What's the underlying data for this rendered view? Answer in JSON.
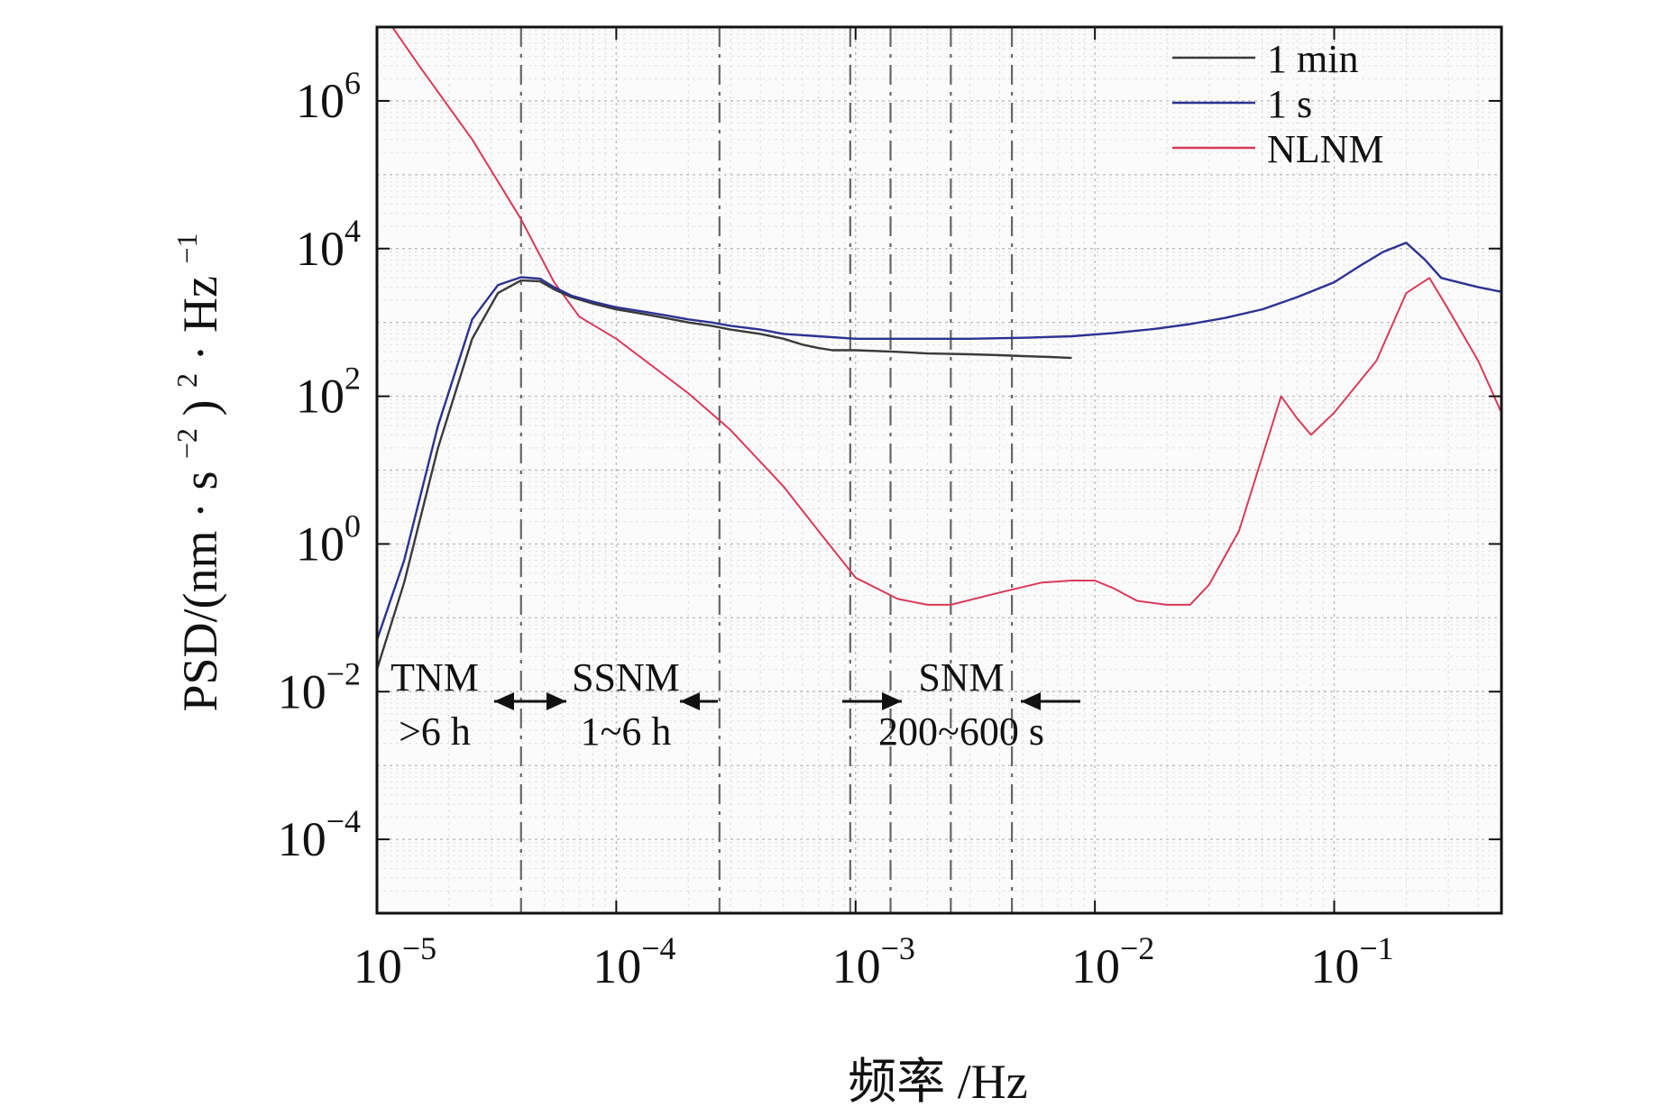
{
  "chart_data": {
    "type": "line",
    "x_scale": "log",
    "y_scale": "log",
    "xlim": [
      1e-05,
      0.5
    ],
    "ylim": [
      1e-05,
      10000000.0
    ],
    "xlabel": "频率 /Hz",
    "ylabel_parts": {
      "a": "PSD/(nm",
      "dot1": "·",
      "b": "s",
      "exp1": "−2",
      "c": ")",
      "exp2": "2",
      "dot2": "·",
      "d": "Hz",
      "exp3": "−1"
    },
    "x_ticks": [
      {
        "value": 1e-05,
        "base": "10",
        "exp": "−5"
      },
      {
        "value": 0.0001,
        "base": "10",
        "exp": "−4"
      },
      {
        "value": 0.001,
        "base": "10",
        "exp": "−3"
      },
      {
        "value": 0.01,
        "base": "10",
        "exp": "−2"
      },
      {
        "value": 0.1,
        "base": "10",
        "exp": "−1"
      }
    ],
    "y_ticks": [
      {
        "value": 0.0001,
        "base": "10",
        "exp": "−4"
      },
      {
        "value": 0.01,
        "base": "10",
        "exp": "−2"
      },
      {
        "value": 1,
        "base": "10",
        "exp": "0"
      },
      {
        "value": 100,
        "base": "10",
        "exp": "2"
      },
      {
        "value": 10000,
        "base": "10",
        "exp": "4"
      },
      {
        "value": 1000000,
        "base": "10",
        "exp": "6"
      }
    ],
    "grid": true,
    "legend_position": "top-right",
    "series": [
      {
        "name": "1 min",
        "color": "#3a3a3a",
        "x": [
          1e-05,
          1.3e-05,
          1.8e-05,
          2.5e-05,
          3.2e-05,
          4e-05,
          4.8e-05,
          5.5e-05,
          6.5e-05,
          8e-05,
          0.0001,
          0.00013,
          0.00016,
          0.0002,
          0.00025,
          0.0003,
          0.0004,
          0.0005,
          0.0006,
          0.0007,
          0.0008,
          0.001,
          0.0015,
          0.002,
          0.003,
          0.004,
          0.005,
          0.0065,
          0.008
        ],
        "y": [
          0.02,
          0.3,
          20,
          600,
          2500,
          3700,
          3600,
          2800,
          2200,
          1800,
          1500,
          1300,
          1150,
          1000,
          900,
          800,
          700,
          600,
          500,
          450,
          420,
          420,
          400,
          380,
          370,
          360,
          350,
          340,
          330
        ]
      },
      {
        "name": "1 s",
        "color": "#2e3192",
        "x": [
          1e-05,
          1.3e-05,
          1.8e-05,
          2.5e-05,
          3.2e-05,
          4e-05,
          4.8e-05,
          5.5e-05,
          6.5e-05,
          8e-05,
          0.0001,
          0.00013,
          0.00016,
          0.0002,
          0.00025,
          0.0003,
          0.0004,
          0.0005,
          0.0007,
          0.001,
          0.0015,
          0.002,
          0.003,
          0.005,
          0.008,
          0.012,
          0.018,
          0.025,
          0.035,
          0.05,
          0.07,
          0.1,
          0.13,
          0.16,
          0.2,
          0.24,
          0.28,
          0.33,
          0.4,
          0.5
        ],
        "y": [
          0.05,
          0.6,
          40,
          1100,
          3200,
          4100,
          3900,
          3000,
          2300,
          1900,
          1600,
          1400,
          1250,
          1100,
          1000,
          900,
          800,
          700,
          650,
          600,
          600,
          600,
          600,
          620,
          650,
          720,
          820,
          950,
          1150,
          1500,
          2200,
          3500,
          6000,
          9000,
          12000,
          7000,
          4000,
          3500,
          3000,
          2600
        ]
      },
      {
        "name": "NLNM",
        "color": "#d83a5a",
        "x": [
          1e-05,
          1.5e-05,
          2.5e-05,
          4e-05,
          5.5e-05,
          7e-05,
          0.0001,
          0.0002,
          0.0003,
          0.0005,
          0.0007,
          0.001,
          0.0015,
          0.002,
          0.0025,
          0.004,
          0.006,
          0.008,
          0.01,
          0.012,
          0.015,
          0.02,
          0.025,
          0.03,
          0.04,
          0.05,
          0.06,
          0.07,
          0.08,
          0.1,
          0.15,
          0.2,
          0.25,
          0.3,
          0.4,
          0.5
        ],
        "y": [
          20000000,
          3000000,
          300000,
          25000,
          3500,
          1200,
          600,
          110,
          35,
          6,
          1.5,
          0.35,
          0.18,
          0.15,
          0.15,
          0.22,
          0.3,
          0.32,
          0.32,
          0.25,
          0.17,
          0.15,
          0.15,
          0.28,
          1.5,
          15,
          100,
          50,
          30,
          60,
          300,
          2500,
          4000,
          1500,
          300,
          60
        ]
      }
    ],
    "vlines": [
      4e-05,
      0.00027,
      0.00095,
      0.0025,
      0.0014,
      0.0045
    ],
    "annotations": [
      {
        "name": "tnm",
        "line1": "TNM",
        "line2": ">6 h",
        "x": 2e-05
      },
      {
        "name": "ssnm",
        "line1": "SSNM",
        "line2": "1~6 h",
        "x": 0.0001
      },
      {
        "name": "snm",
        "line1": "SNM",
        "line2": "200~600 s",
        "x": 0.0023
      }
    ]
  }
}
